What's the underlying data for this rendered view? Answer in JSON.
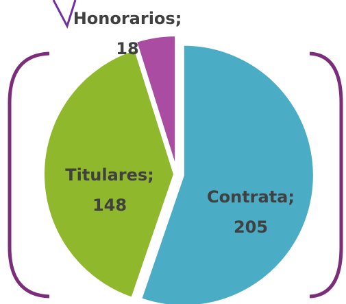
{
  "chart_data": {
    "type": "pie",
    "categories": [
      "Contrata;",
      "Titulares;",
      "Honorarios;"
    ],
    "values": [
      205,
      148,
      18
    ],
    "colors": [
      "#4bacc6",
      "#8fb82c",
      "#a94ca2"
    ]
  }
}
